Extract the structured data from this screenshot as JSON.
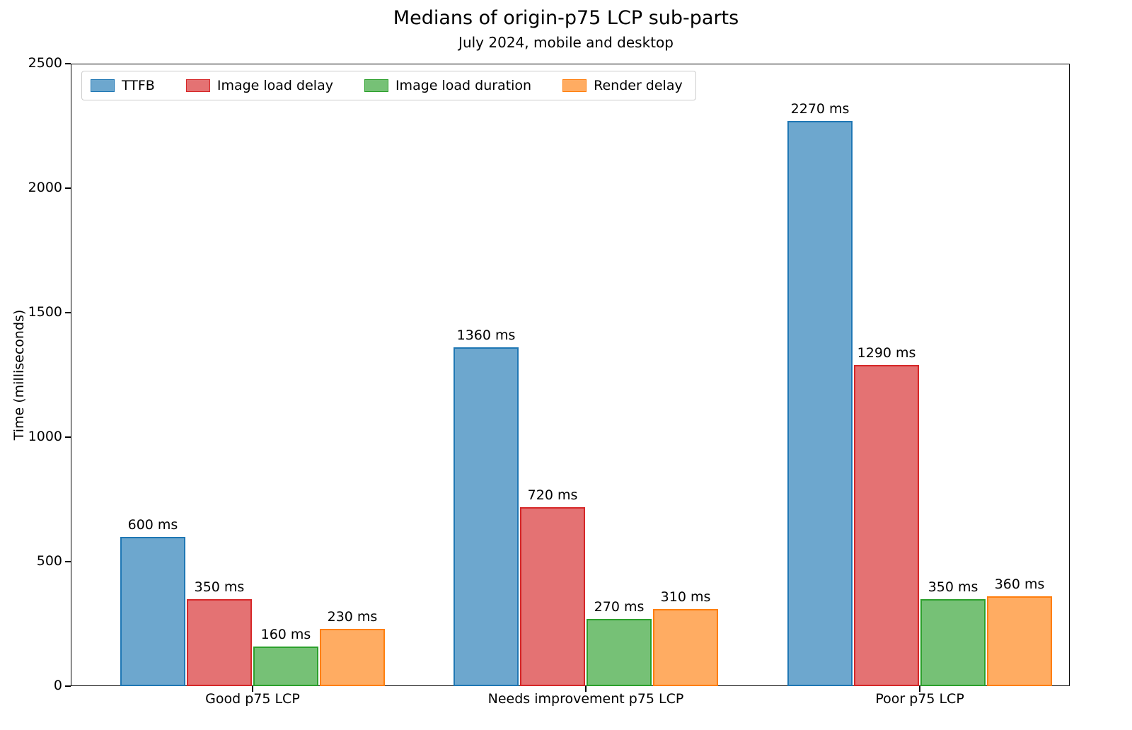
{
  "chart_data": {
    "type": "bar",
    "title": "Medians of origin-p75 LCP sub-parts",
    "subtitle": "July 2024, mobile and desktop",
    "xlabel": "",
    "ylabel": "Time (milliseconds)",
    "ylim": [
      0,
      2500
    ],
    "yticks": [
      0,
      500,
      1000,
      1500,
      2000,
      2500
    ],
    "grid": false,
    "legend_position": "upper left",
    "bar_label_suffix": " ms",
    "categories": [
      "Good p75 LCP",
      "Needs improvement p75 LCP",
      "Poor p75 LCP"
    ],
    "series": [
      {
        "name": "TTFB",
        "values": [
          600,
          1360,
          2270
        ],
        "fill": "#6da7ce",
        "edge": "#1f77b4"
      },
      {
        "name": "Image load delay",
        "values": [
          350,
          720,
          1290
        ],
        "fill": "#e47273",
        "edge": "#d62728"
      },
      {
        "name": "Image load duration",
        "values": [
          160,
          270,
          350
        ],
        "fill": "#76c176",
        "edge": "#2ca02c"
      },
      {
        "name": "Render delay",
        "values": [
          230,
          310,
          360
        ],
        "fill": "#ffac62",
        "edge": "#ff7f0e"
      }
    ]
  }
}
